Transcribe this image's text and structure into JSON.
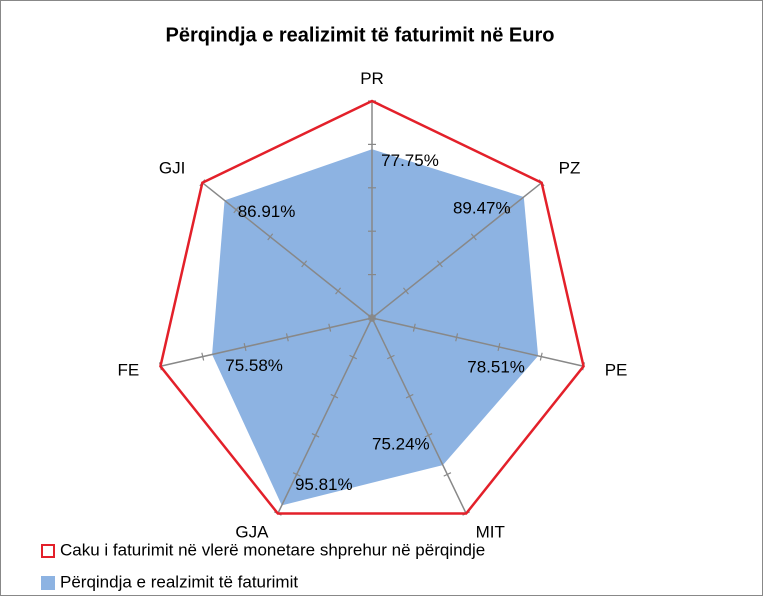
{
  "chart_data": {
    "type": "radar",
    "title": "Përqindja e realizimit të faturimit në Euro",
    "categories": [
      "PR",
      "PZ",
      "PE",
      "MIT",
      "GJA",
      "FE",
      "GJI"
    ],
    "series": [
      {
        "name": "Caku i faturimit në vlerë monetare shprehur në përqindje",
        "color": "#e3202a",
        "values": [
          100,
          100,
          100,
          100,
          100,
          100,
          100
        ],
        "fill": false
      },
      {
        "name": "Përqindja e realzimit të faturimit",
        "color": "#8db3e2",
        "values": [
          77.75,
          89.47,
          78.51,
          75.24,
          95.81,
          75.58,
          86.91
        ],
        "value_labels": [
          "77.75%",
          "89.47%",
          "78.51%",
          "75.24%",
          "95.81%",
          "75.58%",
          "86.91%"
        ],
        "fill": true
      }
    ],
    "ylim": [
      0,
      100
    ],
    "yticks": [
      0,
      20,
      40,
      60,
      80,
      100
    ],
    "grid": true,
    "legend": "bottom"
  }
}
